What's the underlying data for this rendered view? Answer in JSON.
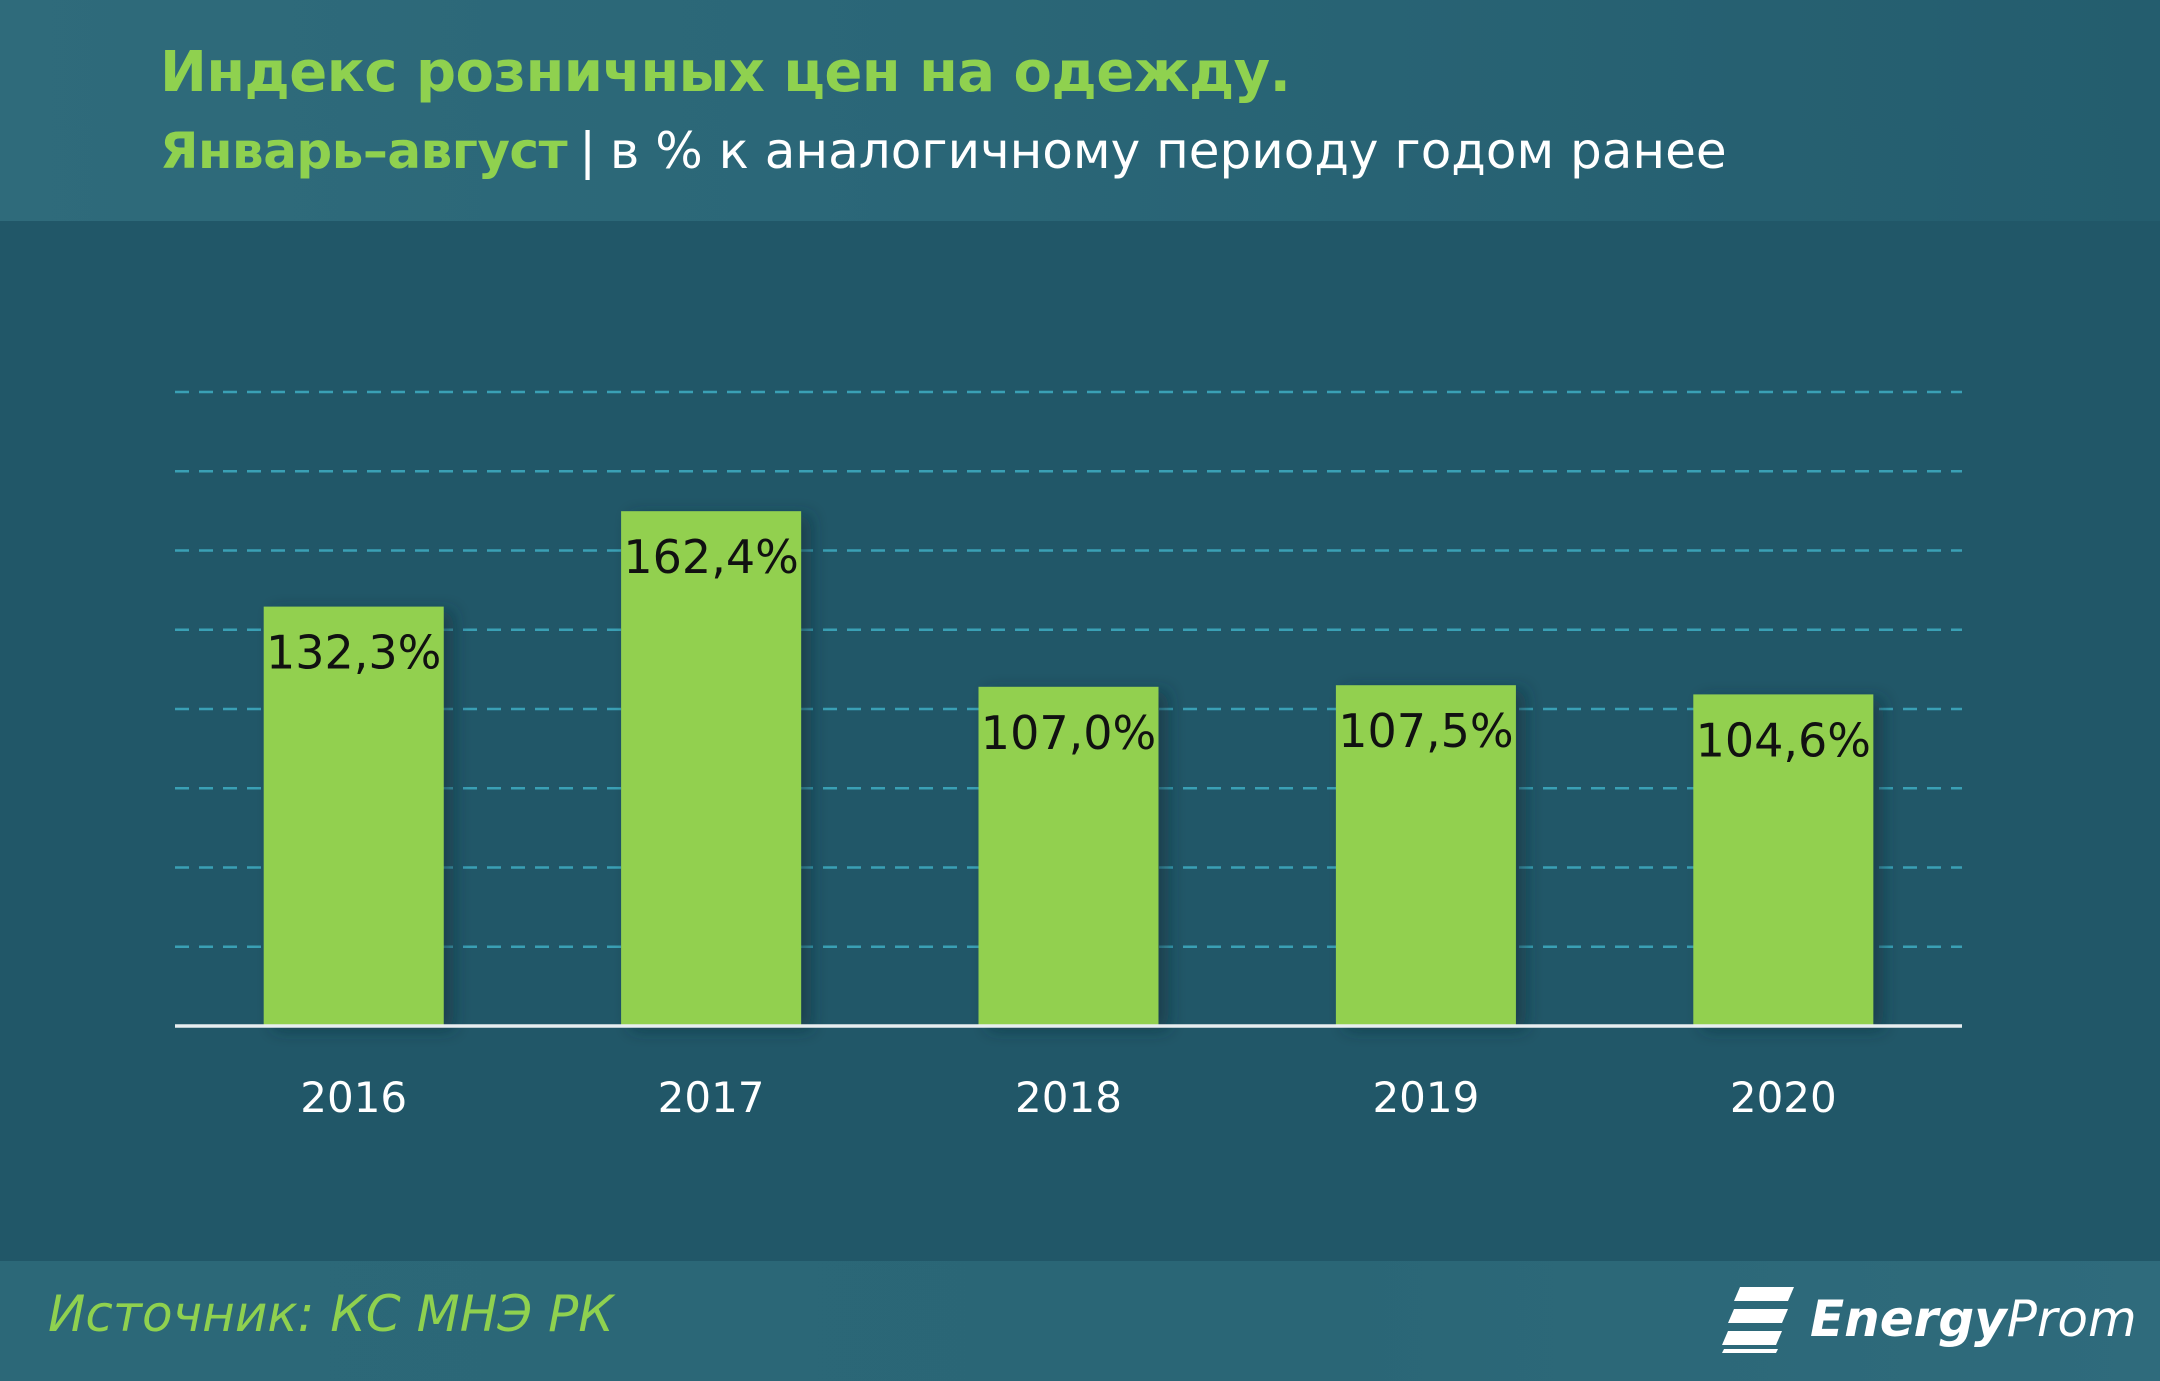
{
  "header": {
    "title": "Индекс розничных цен на одежду.",
    "period": "Январь–август",
    "separator": "|",
    "unit": "в % к аналогичному периоду годом ранее"
  },
  "chart_data": {
    "type": "bar",
    "categories": [
      "2016",
      "2017",
      "2018",
      "2019",
      "2020"
    ],
    "values": [
      132.3,
      162.4,
      107.0,
      107.5,
      104.6
    ],
    "data_labels": [
      "132,3%",
      "162,4%",
      "107,0%",
      "107,5%",
      "104,6%"
    ],
    "grid": true,
    "ylim": [
      0,
      200
    ],
    "colors": {
      "bar": "#92d050",
      "grid": "#3aa0b5",
      "axis": "#e8eef0",
      "tick_label": "#ffffff",
      "data_label": "#111111"
    }
  },
  "footer": {
    "source": "Источник: КС МНЭ РК",
    "logo_bold": "Energy",
    "logo_regular": "Prom",
    "logo_icon": "energyprom-logo-icon"
  }
}
